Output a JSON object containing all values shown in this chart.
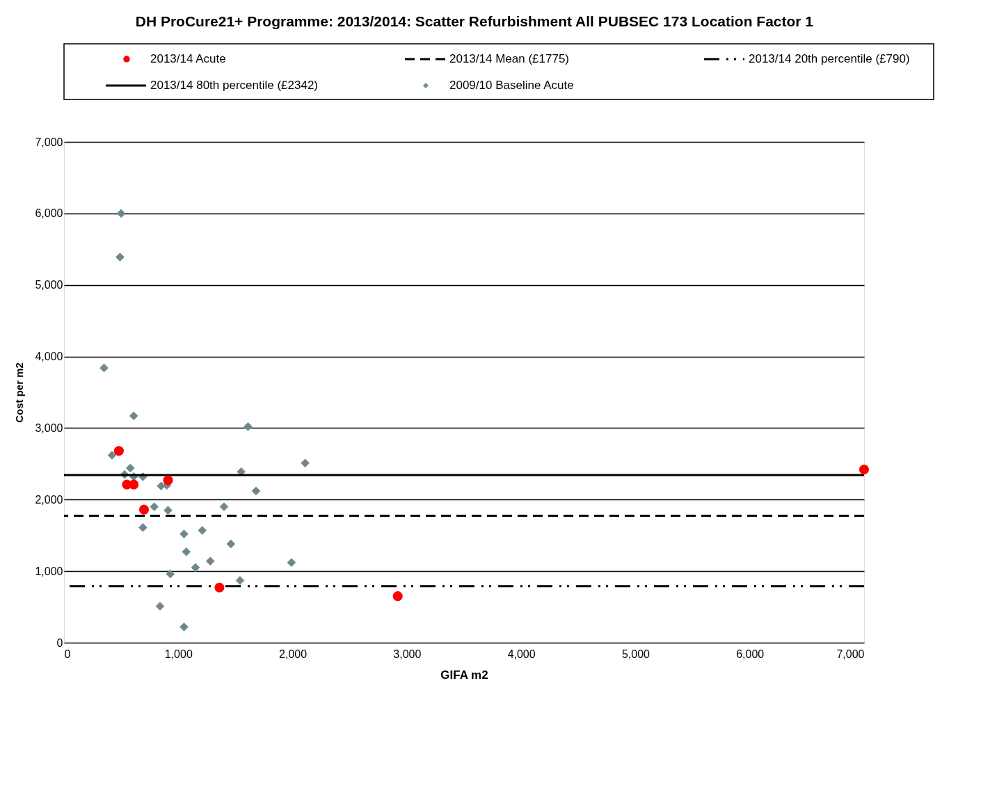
{
  "chart_data": {
    "type": "scatter",
    "title": "DH ProCure21+ Programme: 2013/2014:  Scatter Refurbishment All PUBSEC 173 Location Factor 1",
    "xlabel": "GIFA m2",
    "ylabel": "Cost per m2",
    "xlim": [
      0,
      7000
    ],
    "ylim": [
      0,
      7000
    ],
    "xticks": [
      0,
      {
        "value": 1000,
        "label": "1,000"
      },
      {
        "value": 2000,
        "label": "2,000"
      },
      {
        "value": 3000,
        "label": "3,000"
      },
      {
        "value": 4000,
        "label": "4,000"
      },
      {
        "value": 5000,
        "label": "5,000"
      },
      {
        "value": 6000,
        "label": "6,000"
      },
      {
        "value": 7000,
        "label": "7,000"
      }
    ],
    "yticks": [
      0,
      {
        "value": 1000,
        "label": "1,000"
      },
      {
        "value": 2000,
        "label": "2,000"
      },
      {
        "value": 3000,
        "label": "3,000"
      },
      {
        "value": 4000,
        "label": "4,000"
      },
      {
        "value": 5000,
        "label": "5,000"
      },
      {
        "value": 6000,
        "label": "6,000"
      },
      {
        "value": 7000,
        "label": "7,000"
      }
    ],
    "grid": "y",
    "legend": "top",
    "series": [
      {
        "name": "2013/14 Acute",
        "color": "#ff0000",
        "marker": "circle",
        "x": [
          480,
          550,
          610,
          910,
          700,
          1360,
          2920,
          7000
        ],
        "values": [
          2680,
          2210,
          2210,
          2270,
          1860,
          770,
          650,
          2420
        ]
      },
      {
        "name": "2009/10 Baseline Acute",
        "color": "#808080",
        "marker": "diamond",
        "x": [
          500,
          490,
          350,
          610,
          1610,
          420,
          2110,
          580,
          1550,
          530,
          610,
          690,
          1680,
          850,
          900,
          790,
          910,
          1400,
          690,
          1050,
          1210,
          1460,
          1070,
          1280,
          1150,
          1990,
          930,
          1540,
          840,
          1050
        ],
        "values": [
          6000,
          5390,
          3840,
          3170,
          3020,
          2620,
          2510,
          2440,
          2390,
          2350,
          2320,
          2320,
          2120,
          2190,
          2200,
          1900,
          1850,
          1900,
          1610,
          1520,
          1570,
          1380,
          1270,
          1140,
          1050,
          1120,
          960,
          870,
          510,
          220
        ]
      }
    ],
    "ref_lines": [
      {
        "axis": "y",
        "value": 1775,
        "label": "2013/14 Mean (£1775)",
        "color": "#000000",
        "line_style": "dashed"
      },
      {
        "axis": "y",
        "value": 790,
        "label": "2013/14 20th percentile (£790)",
        "color": "#000000",
        "line_style": "dashdot"
      },
      {
        "axis": "y",
        "value": 2342,
        "label": "2013/14 80th percentile (£2342)",
        "color": "#000000",
        "line_style": "solid"
      }
    ]
  }
}
